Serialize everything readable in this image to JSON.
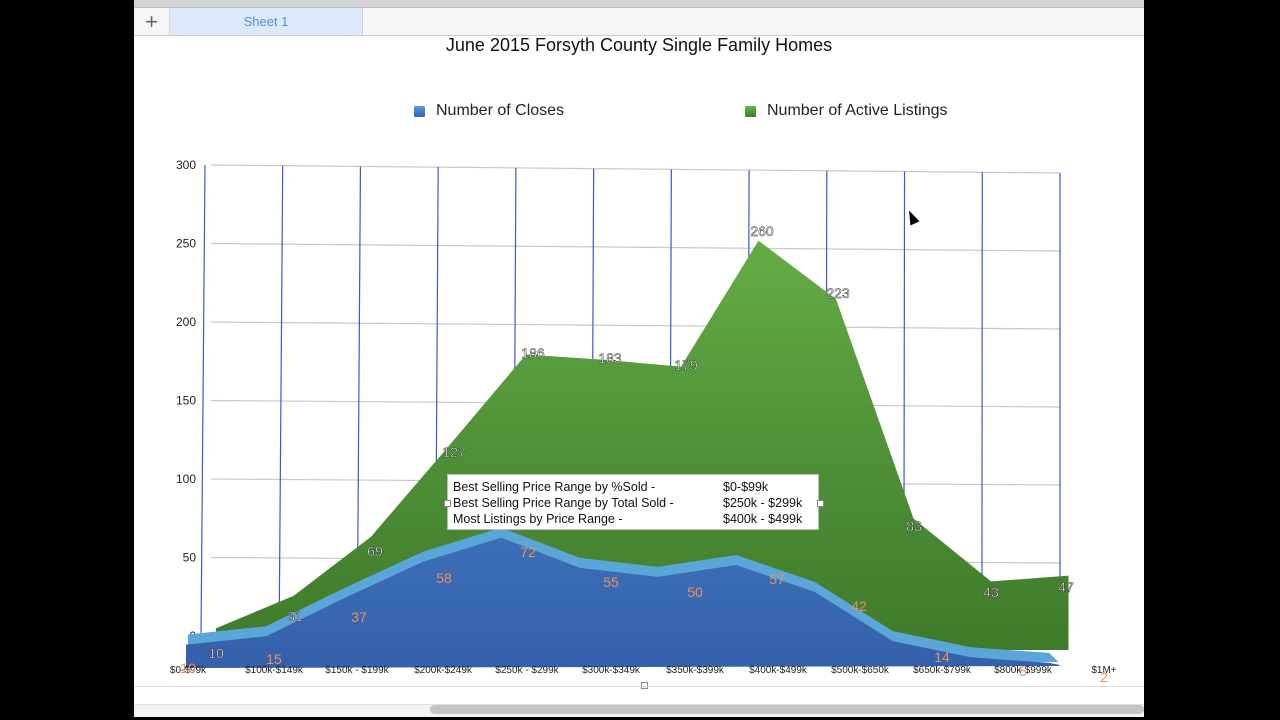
{
  "app": {
    "add_sheet_icon": "+",
    "tabs": [
      {
        "label": "Sheet 1",
        "active": true
      }
    ]
  },
  "colors": {
    "closes": "#3a6db5",
    "closes_top": "#5aa6d8",
    "listings": "#4a8a35",
    "listings_light": "#63ad45",
    "value_label_closes": "#e8925a",
    "value_label_listings": "#ffffff",
    "gridline": "#c8c8c8",
    "vertical_gridline": "#3e55d6"
  },
  "chart_data": {
    "type": "area",
    "title": "June 2015 Forsyth County Single Family Homes",
    "xlabel": "",
    "ylabel": "",
    "ylim": [
      0,
      300
    ],
    "yticks": [
      0,
      50,
      100,
      150,
      200,
      250,
      300
    ],
    "grid": true,
    "legend_position": "top",
    "categories": [
      "$0-$99k",
      "$100k-$149k",
      "$150k - $199k",
      "$200k-$249k",
      "$250k - $299k",
      "$300k-$349k",
      "$350k-$399k",
      "$400k-$499k",
      "$500k-$650k",
      "$650k-$799k",
      "$800k-$999k",
      "$1M+"
    ],
    "series": [
      {
        "name": "Number of Closes",
        "values": [
          10,
          15,
          37,
          58,
          72,
          55,
          50,
          57,
          42,
          14,
          5,
          2
        ]
      },
      {
        "name": "Number of Active Listings",
        "values": [
          10,
          31,
          69,
          127,
          186,
          183,
          179,
          260,
          223,
          83,
          43,
          47
        ]
      }
    ],
    "annotations": [
      {
        "label": "Best Selling Price Range by %Sold -",
        "value": "$0-$99k"
      },
      {
        "label": "Best Selling Price Range by Total Sold -",
        "value": "$250k - $299k"
      },
      {
        "label": "Most Listings by Price Range -",
        "value": "$400k - $499k"
      }
    ]
  }
}
